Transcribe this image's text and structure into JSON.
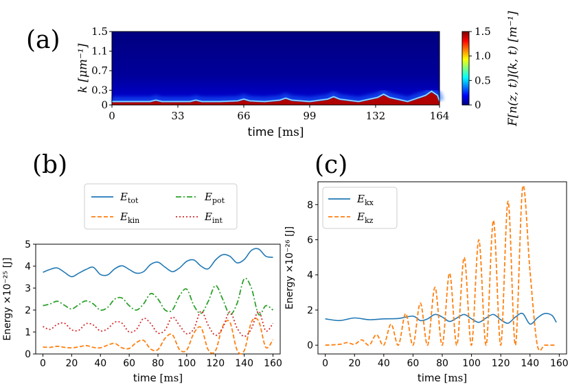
{
  "panels": {
    "a": "(a)",
    "b": "(b)",
    "c": "(c)"
  },
  "chart_data": [
    {
      "id": "a",
      "type": "heatmap",
      "title": "",
      "xlabel": "time [ms]",
      "ylabel": "k [μm⁻¹]",
      "xticks": [
        "0",
        "33",
        "66",
        "99",
        "132",
        "164"
      ],
      "xtick_values": [
        0,
        33,
        66,
        99,
        132,
        164
      ],
      "yticks": [
        "0",
        "0.3",
        "0.7",
        "1.1",
        "1.5"
      ],
      "ytick_values": [
        0,
        0.3,
        0.7,
        1.1,
        1.5
      ],
      "xlim": [
        0,
        164
      ],
      "ylim": [
        0,
        1.5
      ],
      "colorbar": {
        "label": "F[n(z, t)](k, t) [m⁻¹]",
        "ticks": [
          "0",
          "0.5",
          "1.0",
          "1.5"
        ],
        "tick_values": [
          0,
          0.5,
          1.0,
          1.5
        ],
        "range": [
          0,
          1.5
        ],
        "colormap": "jet"
      },
      "ridge_peaks": [
        {
          "t": 22,
          "k": 0.1
        },
        {
          "t": 42,
          "k": 0.1
        },
        {
          "t": 66,
          "k": 0.12
        },
        {
          "t": 87,
          "k": 0.14
        },
        {
          "t": 111,
          "k": 0.17
        },
        {
          "t": 136,
          "k": 0.22
        },
        {
          "t": 160,
          "k": 0.28
        }
      ],
      "colors": {
        "background": "#00007f",
        "band": "#b00000",
        "ridge": "#2a8cff",
        "ridge_bright": "#c8f0ff"
      }
    },
    {
      "id": "b",
      "type": "line",
      "xlabel": "time [ms]",
      "ylabel": "Energy ×10⁻²⁵ [J]",
      "xlim": [
        -5,
        165
      ],
      "ylim": [
        0,
        5
      ],
      "xticks": [
        0,
        20,
        40,
        60,
        80,
        100,
        120,
        140,
        160
      ],
      "yticks": [
        0,
        1,
        2,
        3,
        4,
        5
      ],
      "legend_position": "top",
      "series": [
        {
          "name": "E_tot",
          "label_base": "E",
          "label_sub": "tot",
          "color": "#1f77b4",
          "dash": "solid",
          "x": [
            0,
            5,
            10,
            15,
            20,
            25,
            30,
            35,
            40,
            45,
            50,
            55,
            60,
            65,
            70,
            75,
            80,
            85,
            90,
            95,
            100,
            105,
            110,
            115,
            120,
            125,
            130,
            135,
            140,
            145,
            150,
            155,
            160
          ],
          "values": [
            3.72,
            3.85,
            3.92,
            3.72,
            3.52,
            3.68,
            3.85,
            3.95,
            3.62,
            3.6,
            3.88,
            4.02,
            3.85,
            3.68,
            3.75,
            4.08,
            4.18,
            3.95,
            3.75,
            3.92,
            4.22,
            4.28,
            4.0,
            3.88,
            4.28,
            4.52,
            4.45,
            4.15,
            4.3,
            4.72,
            4.78,
            4.45,
            4.4
          ]
        },
        {
          "name": "E_pot",
          "label_base": "E",
          "label_sub": "pot",
          "color": "#2ca02c",
          "dash": "dashdot",
          "x": [
            0,
            5,
            10,
            15,
            20,
            25,
            30,
            35,
            40,
            45,
            50,
            55,
            60,
            65,
            70,
            75,
            80,
            85,
            90,
            95,
            100,
            105,
            110,
            115,
            120,
            125,
            130,
            135,
            140,
            145,
            150,
            155,
            160
          ],
          "values": [
            2.2,
            2.28,
            2.4,
            2.22,
            2.05,
            2.25,
            2.42,
            2.28,
            2.0,
            2.12,
            2.5,
            2.55,
            2.2,
            2.0,
            2.28,
            2.75,
            2.5,
            2.0,
            2.0,
            2.65,
            2.95,
            2.2,
            1.85,
            2.4,
            3.12,
            2.5,
            1.8,
            2.3,
            3.42,
            3.0,
            1.8,
            2.2,
            2.0
          ]
        },
        {
          "name": "E_kin",
          "label_base": "E",
          "label_sub": "kin",
          "color": "#ff7f0e",
          "dash": "dashed",
          "x": [
            0,
            5,
            10,
            15,
            20,
            25,
            30,
            35,
            40,
            45,
            50,
            55,
            60,
            65,
            70,
            75,
            80,
            85,
            90,
            95,
            100,
            105,
            110,
            115,
            120,
            125,
            130,
            135,
            140,
            145,
            150,
            155,
            160
          ],
          "values": [
            0.32,
            0.3,
            0.35,
            0.3,
            0.28,
            0.32,
            0.38,
            0.3,
            0.28,
            0.4,
            0.48,
            0.28,
            0.25,
            0.52,
            0.62,
            0.22,
            0.2,
            0.72,
            0.88,
            0.2,
            0.18,
            0.95,
            1.2,
            0.18,
            0.15,
            1.25,
            1.45,
            0.18,
            0.15,
            1.45,
            1.5,
            0.3,
            0.65
          ]
        },
        {
          "name": "E_int",
          "label_base": "E",
          "label_sub": "int",
          "color": "#d62728",
          "dash": "dotted",
          "x": [
            0,
            5,
            10,
            15,
            20,
            25,
            30,
            35,
            40,
            45,
            50,
            55,
            60,
            65,
            70,
            75,
            80,
            85,
            90,
            95,
            100,
            105,
            110,
            115,
            120,
            125,
            130,
            135,
            140,
            145,
            150,
            155,
            160
          ],
          "values": [
            1.25,
            1.12,
            1.35,
            1.4,
            1.1,
            1.08,
            1.38,
            1.32,
            1.05,
            1.15,
            1.45,
            1.4,
            1.0,
            1.12,
            1.62,
            1.38,
            0.95,
            1.1,
            1.68,
            1.3,
            0.92,
            1.15,
            1.95,
            1.3,
            0.85,
            1.18,
            1.92,
            1.18,
            0.8,
            1.15,
            1.95,
            1.05,
            1.4
          ]
        }
      ]
    },
    {
      "id": "c",
      "type": "line",
      "xlabel": "time [ms]",
      "ylabel": "Energy ×10⁻²⁶ [J]",
      "xlim": [
        -5,
        165
      ],
      "ylim": [
        -0.5,
        9.3
      ],
      "xticks": [
        0,
        20,
        40,
        60,
        80,
        100,
        120,
        140,
        160
      ],
      "yticks": [
        0,
        2,
        4,
        6,
        8
      ],
      "legend_position": "top-left",
      "series": [
        {
          "name": "E_kx",
          "label_base": "E",
          "label_sub": "kx",
          "color": "#1f77b4",
          "dash": "solid",
          "x": [
            0,
            10,
            20,
            30,
            40,
            50,
            60,
            65,
            70,
            75,
            80,
            85,
            90,
            95,
            100,
            105,
            110,
            115,
            120,
            125,
            130,
            135,
            140,
            145,
            150,
            155,
            158
          ],
          "values": [
            1.5,
            1.4,
            1.55,
            1.45,
            1.5,
            1.52,
            1.65,
            1.4,
            1.5,
            1.75,
            1.6,
            1.35,
            1.55,
            1.75,
            1.5,
            1.3,
            1.55,
            1.75,
            1.45,
            1.25,
            1.6,
            1.8,
            1.2,
            1.55,
            1.8,
            1.7,
            1.3
          ]
        },
        {
          "name": "E_kz",
          "label_base": "E",
          "label_sub": "kz",
          "color": "#ff7f0e",
          "dash": "dashed",
          "x": [
            0,
            10,
            15,
            20,
            25,
            30,
            35,
            40,
            45,
            50,
            55,
            60,
            65,
            70,
            75,
            80,
            85,
            90,
            95,
            100,
            105,
            110,
            115,
            120,
            125,
            130,
            135,
            140,
            145,
            150,
            155,
            158
          ],
          "values": [
            0.0,
            0.05,
            0.15,
            0.05,
            0.3,
            0.0,
            0.6,
            0.0,
            1.2,
            0.0,
            1.8,
            0.0,
            2.4,
            0.0,
            3.3,
            0.0,
            4.1,
            0.0,
            5.0,
            0.0,
            6.0,
            0.0,
            7.1,
            0.0,
            8.2,
            0.0,
            9.0,
            4.2,
            0.0,
            0.0,
            0.0,
            0.0
          ]
        }
      ]
    }
  ]
}
